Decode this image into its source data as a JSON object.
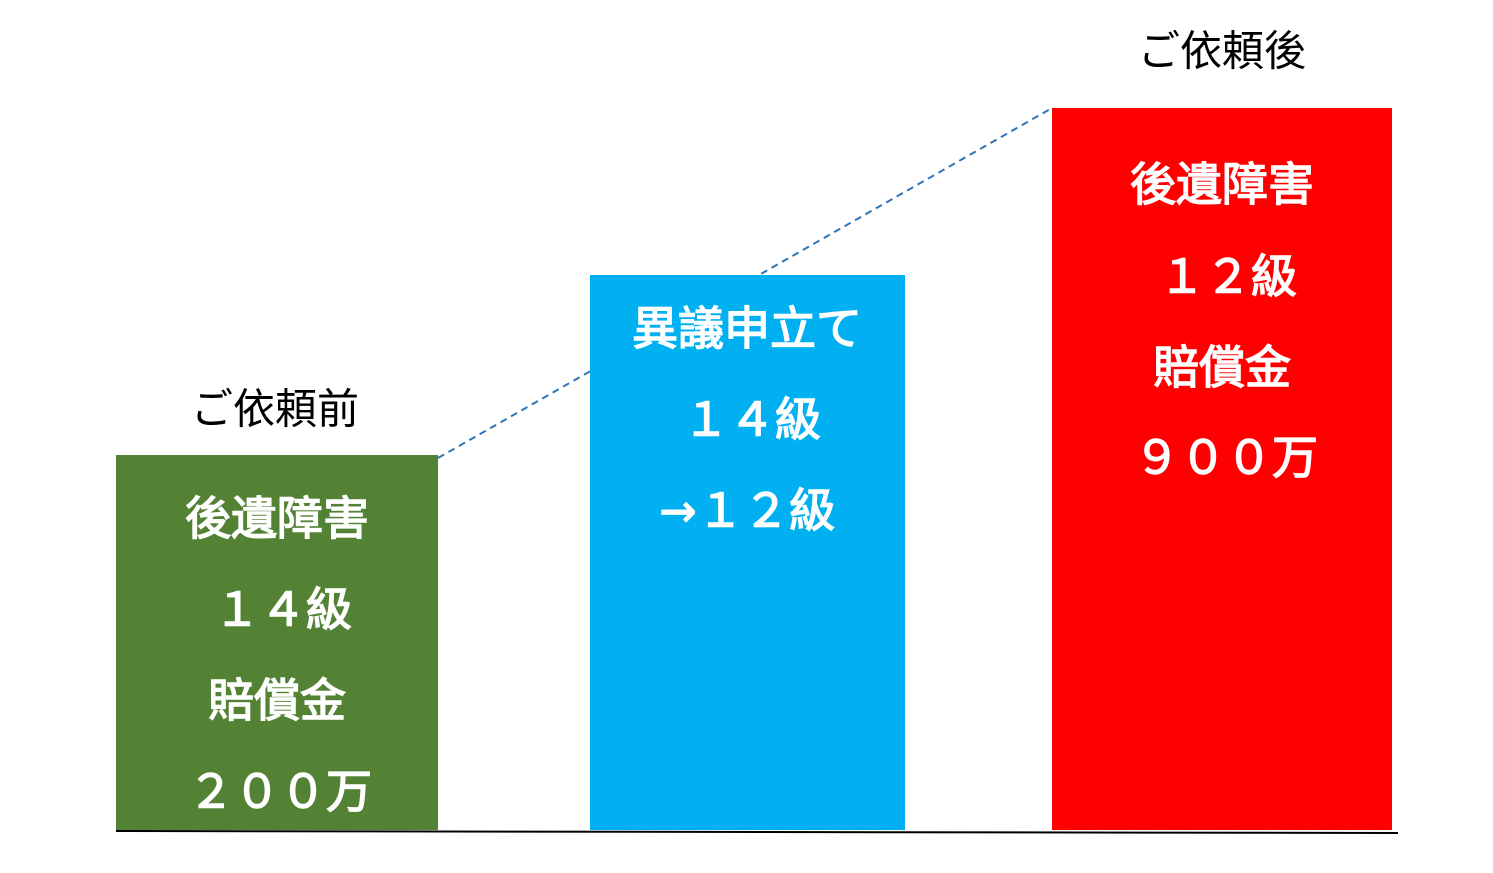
{
  "columns": [
    {
      "heading": "ご依頼前",
      "lines": [
        "後遺障害",
        "１４級",
        "賠償金",
        "２００万"
      ]
    },
    {
      "lines": [
        "異議申立て",
        "１４級",
        "→１２級"
      ]
    },
    {
      "heading": "ご依頼後",
      "lines": [
        "後遺障害",
        "１２級",
        "賠償金",
        "９００万"
      ]
    }
  ]
}
